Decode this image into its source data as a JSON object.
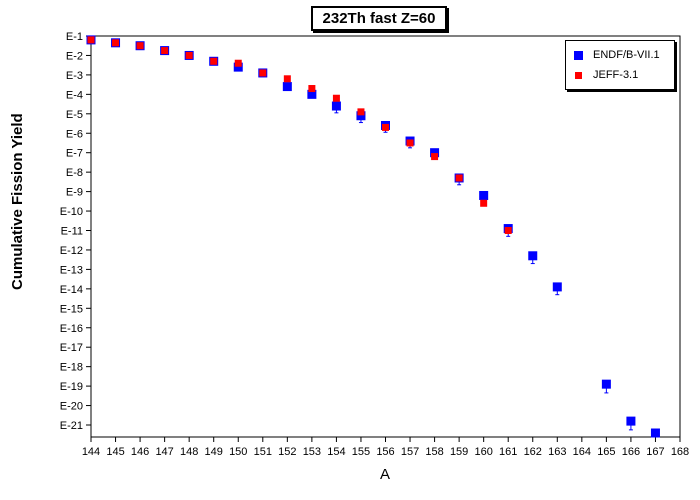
{
  "chart_data": {
    "type": "scatter",
    "title": "232Th fast Z=60",
    "xlabel": "A",
    "ylabel": "Cumulative Fission Yield",
    "xlim": [
      144,
      168
    ],
    "ylim_log10": [
      -21.5,
      -1
    ],
    "x_ticks": [
      144,
      145,
      146,
      147,
      148,
      149,
      150,
      151,
      152,
      153,
      154,
      155,
      156,
      157,
      158,
      159,
      160,
      161,
      162,
      163,
      164,
      165,
      166,
      167,
      168
    ],
    "y_tick_labels": [
      "E-1",
      "E-2",
      "E-3",
      "E-4",
      "E-5",
      "E-6",
      "E-7",
      "E-8",
      "E-9",
      "E-10",
      "E-11",
      "E-12",
      "E-13",
      "E-14",
      "E-15",
      "E-16",
      "E-17",
      "E-18",
      "E-19",
      "E-20",
      "E-21"
    ],
    "grid": true,
    "legend_position": "top-right",
    "series": [
      {
        "name": "ENDF/B-VII.1",
        "color": "#0000ff",
        "marker": "square",
        "points": [
          {
            "x": 144,
            "log10y": -1.2
          },
          {
            "x": 145,
            "log10y": -1.35
          },
          {
            "x": 146,
            "log10y": -1.5
          },
          {
            "x": 147,
            "log10y": -1.75
          },
          {
            "x": 148,
            "log10y": -2.0
          },
          {
            "x": 149,
            "log10y": -2.3
          },
          {
            "x": 150,
            "log10y": -2.6
          },
          {
            "x": 151,
            "log10y": -2.9
          },
          {
            "x": 152,
            "log10y": -3.6
          },
          {
            "x": 153,
            "log10y": -4.0
          },
          {
            "x": 154,
            "log10y": -4.6,
            "err": 0.35
          },
          {
            "x": 155,
            "log10y": -5.1,
            "err": 0.35
          },
          {
            "x": 156,
            "log10y": -5.6,
            "err": 0.35
          },
          {
            "x": 157,
            "log10y": -6.4,
            "err": 0.35
          },
          {
            "x": 158,
            "log10y": -7.0,
            "err": 0.3
          },
          {
            "x": 159,
            "log10y": -8.3,
            "err": 0.35
          },
          {
            "x": 160,
            "log10y": -9.2,
            "err": 0.35
          },
          {
            "x": 161,
            "log10y": -10.9,
            "err": 0.4
          },
          {
            "x": 162,
            "log10y": -12.3,
            "err": 0.4
          },
          {
            "x": 163,
            "log10y": -13.9,
            "err": 0.4
          },
          {
            "x": 165,
            "log10y": -18.9,
            "err": 0.45
          },
          {
            "x": 166,
            "log10y": -20.8,
            "err": 0.45
          },
          {
            "x": 167,
            "log10y": -22.0
          }
        ]
      },
      {
        "name": "JEFF-3.1",
        "color": "#ff0000",
        "marker": "square-small",
        "points": [
          {
            "x": 144,
            "log10y": -1.2
          },
          {
            "x": 145,
            "log10y": -1.35
          },
          {
            "x": 146,
            "log10y": -1.5
          },
          {
            "x": 147,
            "log10y": -1.75
          },
          {
            "x": 148,
            "log10y": -2.0
          },
          {
            "x": 149,
            "log10y": -2.3
          },
          {
            "x": 150,
            "log10y": -2.4
          },
          {
            "x": 151,
            "log10y": -2.9
          },
          {
            "x": 152,
            "log10y": -3.2
          },
          {
            "x": 153,
            "log10y": -3.7
          },
          {
            "x": 154,
            "log10y": -4.2
          },
          {
            "x": 155,
            "log10y": -4.9
          },
          {
            "x": 156,
            "log10y": -5.7
          },
          {
            "x": 157,
            "log10y": -6.5
          },
          {
            "x": 158,
            "log10y": -7.2
          },
          {
            "x": 159,
            "log10y": -8.3
          },
          {
            "x": 160,
            "log10y": -9.6
          },
          {
            "x": 161,
            "log10y": -11.0
          }
        ]
      }
    ]
  }
}
